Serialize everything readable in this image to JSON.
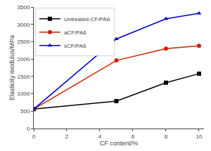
{
  "chart_data": {
    "type": "line",
    "xlabel": "CF content/%",
    "ylabel": "Elasticity modulus/MPa",
    "x": [
      0,
      5,
      8,
      10
    ],
    "series": [
      {
        "name": "Untreated-CF/PA6",
        "color": "#000000",
        "marker": "square",
        "line_style": "solid",
        "values": [
          560,
          790,
          1320,
          1580
        ]
      },
      {
        "name": "aCF/PA6",
        "color": "#cc2200",
        "marker": "circle",
        "line_style": "solid",
        "values": [
          560,
          1960,
          2300,
          2380
        ]
      },
      {
        "name": "sCF/PA6",
        "color": "#0000cc",
        "marker": "triangle-up",
        "line_style": "solid",
        "values": [
          560,
          2580,
          3160,
          3320
        ]
      }
    ],
    "xlim": [
      0,
      10.3
    ],
    "ylim": [
      0,
      3500
    ],
    "xticks": [
      0,
      2,
      4,
      6,
      8,
      10
    ],
    "yticks": [
      0,
      500,
      1000,
      1500,
      2000,
      2500,
      3000,
      3500
    ],
    "grid": false,
    "legend": "upper left"
  }
}
